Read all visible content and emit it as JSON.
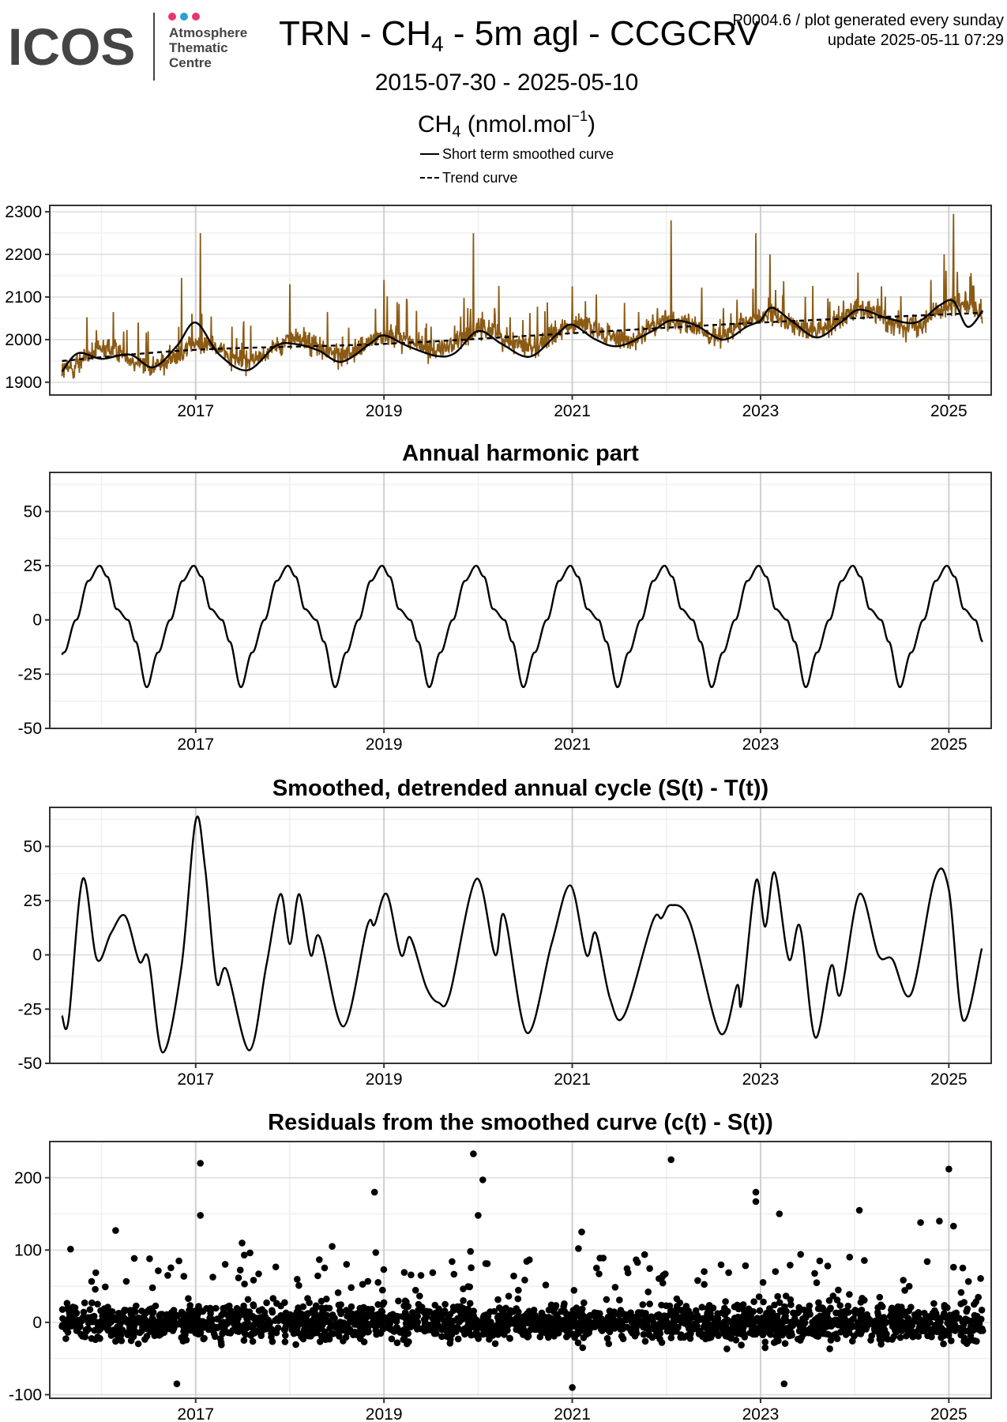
{
  "header": {
    "logo_text": "ICOS",
    "logo_sub": [
      "Atmosphere",
      "Thematic",
      "Centre"
    ],
    "title_prefix": "TRN - CH",
    "title_sub": "4",
    "title_suffix": " - 5m agl - CCGCRV",
    "date_range": "2015-07-30 - 2025-05-10",
    "meta_line1": "P0004.6 / plot generated every sunday",
    "meta_line2": "update  2025-05-11 07:29",
    "unit_main": "CH",
    "unit_sub": "4",
    "unit_rest": " (nmol.mol",
    "unit_sup": "−1",
    "unit_close": ")"
  },
  "legend": {
    "smoothed": "Short term smoothed curve",
    "trend": "Trend curve"
  },
  "colors": {
    "raw_series": "#8B5A14",
    "curves": "#000000",
    "grid_major": "#dcdcdc",
    "grid_minor": "#f0f0f0",
    "logo_dots": [
      "#e8356d",
      "#2a9fd8",
      "#e8356d"
    ]
  },
  "chart_data": [
    {
      "type": "line",
      "title": "",
      "ylabel": "",
      "xlim": [
        2015.45,
        2025.45
      ],
      "ylim": [
        1870,
        2315
      ],
      "x_ticks": [
        2017,
        2019,
        2021,
        2023,
        2025
      ],
      "x_tick_labels": [
        "2017",
        "2019",
        "2021",
        "2023",
        "2025"
      ],
      "y_ticks": [
        1900,
        2000,
        2100,
        2200,
        2300
      ],
      "y_tick_labels": [
        "1900",
        "2000",
        "2100",
        "2200",
        "2300"
      ],
      "series": [
        {
          "name": "",
          "style": "raw",
          "color": "#8B5A14",
          "trend": [
            [
              2015.58,
              1950
            ],
            [
              2025.36,
              2063
            ]
          ],
          "seasonal_amplitude": 28,
          "noise_amplitude": 22,
          "spikes": [
            [
              2016.85,
              2145
            ],
            [
              2017.05,
              2250
            ],
            [
              2018.0,
              2130
            ],
            [
              2019.0,
              2140
            ],
            [
              2019.95,
              2250
            ],
            [
              2021.0,
              2125
            ],
            [
              2022.05,
              2280
            ],
            [
              2022.95,
              2250
            ],
            [
              2023.1,
              2200
            ],
            [
              2024.95,
              2200
            ],
            [
              2025.05,
              2295
            ]
          ]
        },
        {
          "name": "Short term smoothed curve",
          "style": "solid",
          "color": "#000000",
          "points": [
            [
              2015.58,
              1925
            ],
            [
              2015.75,
              1968
            ],
            [
              2016.0,
              1955
            ],
            [
              2016.3,
              1965
            ],
            [
              2016.55,
              1935
            ],
            [
              2016.8,
              1985
            ],
            [
              2017.0,
              2040
            ],
            [
              2017.25,
              1965
            ],
            [
              2017.55,
              1928
            ],
            [
              2017.85,
              1985
            ],
            [
              2018.05,
              1990
            ],
            [
              2018.3,
              1975
            ],
            [
              2018.55,
              1948
            ],
            [
              2018.85,
              1990
            ],
            [
              2019.0,
              2010
            ],
            [
              2019.25,
              1985
            ],
            [
              2019.55,
              1962
            ],
            [
              2019.75,
              1968
            ],
            [
              2020.0,
              2020
            ],
            [
              2020.25,
              1990
            ],
            [
              2020.55,
              1960
            ],
            [
              2020.85,
              2015
            ],
            [
              2021.0,
              2035
            ],
            [
              2021.25,
              2000
            ],
            [
              2021.5,
              1985
            ],
            [
              2021.85,
              2020
            ],
            [
              2022.05,
              2045
            ],
            [
              2022.3,
              2035
            ],
            [
              2022.6,
              2000
            ],
            [
              2022.85,
              2030
            ],
            [
              2023.0,
              2045
            ],
            [
              2023.12,
              2075
            ],
            [
              2023.35,
              2040
            ],
            [
              2023.6,
              2005
            ],
            [
              2023.85,
              2040
            ],
            [
              2024.05,
              2070
            ],
            [
              2024.35,
              2050
            ],
            [
              2024.65,
              2040
            ],
            [
              2024.9,
              2080
            ],
            [
              2025.05,
              2090
            ],
            [
              2025.2,
              2030
            ],
            [
              2025.36,
              2068
            ]
          ]
        },
        {
          "name": "Trend curve",
          "style": "dashed",
          "color": "#000000",
          "points": [
            [
              2015.58,
              1950
            ],
            [
              2017.0,
              1976
            ],
            [
              2019.0,
              1990
            ],
            [
              2021.0,
              2015
            ],
            [
              2023.0,
              2040
            ],
            [
              2025.36,
              2063
            ]
          ]
        }
      ]
    },
    {
      "type": "line",
      "title": "Annual harmonic part",
      "ylabel": "",
      "xlim": [
        2015.45,
        2025.45
      ],
      "ylim": [
        -50,
        68
      ],
      "x_ticks": [
        2017,
        2019,
        2021,
        2023,
        2025
      ],
      "x_tick_labels": [
        "2017",
        "2019",
        "2021",
        "2023",
        "2025"
      ],
      "y_ticks": [
        -50,
        -25,
        0,
        25,
        50
      ],
      "y_tick_labels": [
        "-50",
        "-25",
        "0",
        "25",
        "50"
      ],
      "series": [
        {
          "name": "",
          "style": "solid",
          "color": "#000000",
          "period": 1.0,
          "peak_phase": 0.98,
          "shape": [
            [
              0.0,
              25
            ],
            [
              0.08,
              20
            ],
            [
              0.18,
              5
            ],
            [
              0.3,
              0
            ],
            [
              0.38,
              -10
            ],
            [
              0.5,
              -31
            ],
            [
              0.62,
              -15
            ],
            [
              0.75,
              0
            ],
            [
              0.88,
              18
            ],
            [
              1.0,
              25
            ]
          ],
          "x_start": 2015.58,
          "x_end": 2025.36
        }
      ]
    },
    {
      "type": "line",
      "title": "Smoothed, detrended annual cycle (S(t) - T(t))",
      "ylabel": "",
      "xlim": [
        2015.45,
        2025.45
      ],
      "ylim": [
        -50,
        68
      ],
      "x_ticks": [
        2017,
        2019,
        2021,
        2023,
        2025
      ],
      "x_tick_labels": [
        "2017",
        "2019",
        "2021",
        "2023",
        "2025"
      ],
      "y_ticks": [
        -50,
        -25,
        0,
        25,
        50
      ],
      "y_tick_labels": [
        "-50",
        "-25",
        "0",
        "25",
        "50"
      ],
      "series": [
        {
          "name": "",
          "style": "solid",
          "color": "#000000",
          "points": [
            [
              2015.58,
              -28
            ],
            [
              2015.65,
              -30
            ],
            [
              2015.8,
              35
            ],
            [
              2015.95,
              -2
            ],
            [
              2016.1,
              10
            ],
            [
              2016.25,
              18
            ],
            [
              2016.4,
              -3
            ],
            [
              2016.5,
              -2
            ],
            [
              2016.65,
              -45
            ],
            [
              2016.85,
              -5
            ],
            [
              2017.0,
              62
            ],
            [
              2017.1,
              40
            ],
            [
              2017.22,
              -12
            ],
            [
              2017.33,
              -7
            ],
            [
              2017.57,
              -44
            ],
            [
              2017.75,
              -5
            ],
            [
              2017.9,
              28
            ],
            [
              2018.0,
              5
            ],
            [
              2018.1,
              28
            ],
            [
              2018.22,
              0
            ],
            [
              2018.32,
              8
            ],
            [
              2018.57,
              -33
            ],
            [
              2018.82,
              13
            ],
            [
              2018.9,
              14
            ],
            [
              2019.03,
              28
            ],
            [
              2019.18,
              0
            ],
            [
              2019.28,
              8
            ],
            [
              2019.45,
              -15
            ],
            [
              2019.58,
              -22
            ],
            [
              2019.7,
              -18
            ],
            [
              2019.98,
              35
            ],
            [
              2020.18,
              0
            ],
            [
              2020.28,
              18
            ],
            [
              2020.52,
              -36
            ],
            [
              2020.78,
              5
            ],
            [
              2020.98,
              32
            ],
            [
              2021.15,
              0
            ],
            [
              2021.25,
              10
            ],
            [
              2021.4,
              -20
            ],
            [
              2021.55,
              -28
            ],
            [
              2021.85,
              15
            ],
            [
              2021.95,
              17
            ],
            [
              2022.05,
              23
            ],
            [
              2022.25,
              15
            ],
            [
              2022.57,
              -36
            ],
            [
              2022.75,
              -14
            ],
            [
              2022.8,
              -22
            ],
            [
              2022.95,
              34
            ],
            [
              2023.05,
              13
            ],
            [
              2023.15,
              38
            ],
            [
              2023.3,
              -2
            ],
            [
              2023.42,
              13
            ],
            [
              2023.58,
              -38
            ],
            [
              2023.75,
              -5
            ],
            [
              2023.85,
              -18
            ],
            [
              2024.05,
              28
            ],
            [
              2024.25,
              0
            ],
            [
              2024.4,
              -2
            ],
            [
              2024.6,
              -18
            ],
            [
              2024.85,
              35
            ],
            [
              2025.0,
              30
            ],
            [
              2025.15,
              -30
            ],
            [
              2025.35,
              3
            ]
          ]
        }
      ]
    },
    {
      "type": "scatter",
      "title": "Residuals from the smoothed curve (c(t) - S(t))",
      "ylabel": "",
      "xlim": [
        2015.45,
        2025.45
      ],
      "ylim": [
        -105,
        250
      ],
      "x_ticks": [
        2017,
        2019,
        2021,
        2023,
        2025
      ],
      "x_tick_labels": [
        "2017",
        "2019",
        "2021",
        "2023",
        "2025"
      ],
      "y_ticks": [
        -100,
        0,
        100,
        200
      ],
      "y_tick_labels": [
        "-100",
        "0",
        "100",
        "200"
      ],
      "series": [
        {
          "name": "",
          "style": "points",
          "color": "#000000",
          "x_start": 2015.58,
          "x_end": 2025.36,
          "n_points": 2200,
          "outliers": [
            [
              2017.05,
              220
            ],
            [
              2017.05,
              148
            ],
            [
              2016.15,
              127
            ],
            [
              2018.45,
              105
            ],
            [
              2018.9,
              180
            ],
            [
              2019.95,
              233
            ],
            [
              2020.05,
              197
            ],
            [
              2020.0,
              148
            ],
            [
              2021.1,
              125
            ],
            [
              2022.05,
              225
            ],
            [
              2022.95,
              180
            ],
            [
              2022.95,
              167
            ],
            [
              2023.2,
              150
            ],
            [
              2024.05,
              155
            ],
            [
              2024.7,
              138
            ],
            [
              2024.9,
              140
            ],
            [
              2025.0,
              212
            ],
            [
              2025.05,
              133
            ],
            [
              2016.8,
              -85
            ],
            [
              2021.0,
              -90
            ],
            [
              2023.25,
              -85
            ]
          ]
        }
      ]
    }
  ]
}
